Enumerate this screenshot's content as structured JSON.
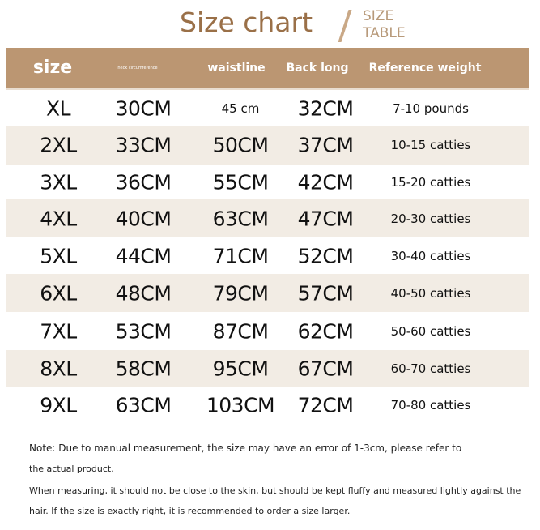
{
  "title": "Size chart",
  "subtitle": [
    "SIZE",
    "TABLE"
  ],
  "colors": {
    "accent": "#bb9672",
    "title": "#9a7048",
    "stripe": "#f2ece4"
  },
  "headers": [
    "size",
    "neck circumference",
    "waistline",
    "Back long",
    "Reference weight"
  ],
  "rows": [
    [
      "XL",
      "30CM",
      "45 cm",
      "32CM",
      "7-10 pounds"
    ],
    [
      "2XL",
      "33CM",
      "50CM",
      "37CM",
      "10-15 catties"
    ],
    [
      "3XL",
      "36CM",
      "55CM",
      "42CM",
      "15-20 catties"
    ],
    [
      "4XL",
      "40CM",
      "63CM",
      "47CM",
      "20-30 catties"
    ],
    [
      "5XL",
      "44CM",
      "71CM",
      "52CM",
      "30-40 catties"
    ],
    [
      "6XL",
      "48CM",
      "79CM",
      "57CM",
      "40-50 catties"
    ],
    [
      "7XL",
      "53CM",
      "87CM",
      "62CM",
      "50-60 catties"
    ],
    [
      "8XL",
      "58CM",
      "95CM",
      "67CM",
      "60-70 catties"
    ],
    [
      "9XL",
      "63CM",
      "103CM",
      "72CM",
      "70-80 catties"
    ]
  ],
  "notes": [
    "Note: Due to manual measurement, the size may have an error of 1-3cm, please refer to",
    "the actual product.",
    "When measuring, it should not be close to the skin, but should be kept fluffy and measured lightly against the",
    "hair. If the size is exactly right, it is recommended to order a size larger."
  ]
}
